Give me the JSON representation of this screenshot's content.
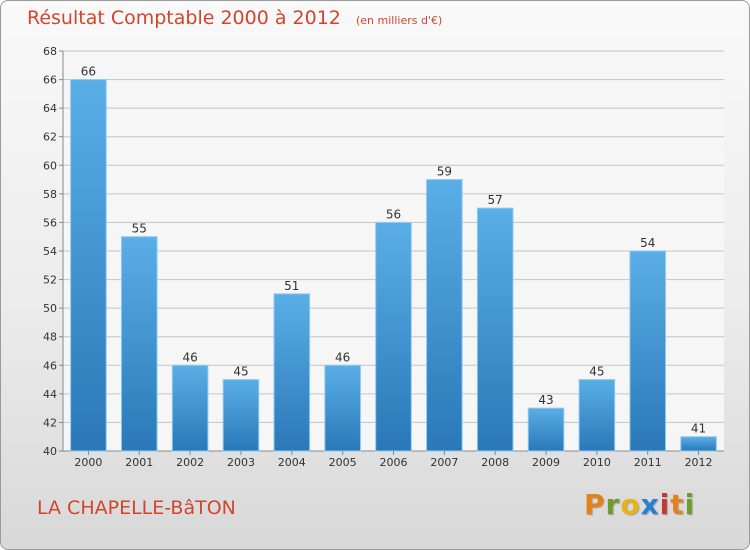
{
  "chart_data": {
    "type": "bar",
    "title": "Résultat Comptable 2000 à 2012",
    "subtitle": "(en milliers d'€)",
    "xlabel": "",
    "ylabel": "",
    "categories": [
      "2000",
      "2001",
      "2002",
      "2003",
      "2004",
      "2005",
      "2006",
      "2007",
      "2008",
      "2009",
      "2010",
      "2011",
      "2012"
    ],
    "values": [
      66,
      55,
      46,
      45,
      51,
      46,
      56,
      59,
      57,
      43,
      45,
      54,
      41
    ],
    "ylim": [
      40,
      68
    ],
    "yticks": [
      40,
      42,
      44,
      46,
      48,
      50,
      52,
      54,
      56,
      58,
      60,
      62,
      64,
      66,
      68
    ],
    "grid": true,
    "legend": "none",
    "colors": {
      "bar_top": "#5aaee6",
      "bar_bottom": "#2a78b8",
      "bar_edge": "#8fcbf2",
      "grid": "#c4c4c4",
      "plot_bg": "#f6f6f6",
      "title": "#d2452d"
    }
  },
  "footer": {
    "commune": "LA CHAPELLE-BâTON",
    "logo": {
      "letters": [
        "P",
        "r",
        "o",
        "x",
        "i",
        "t",
        "i"
      ],
      "colors": [
        "#e2821c",
        "#6f9c2a",
        "#e9b11a",
        "#2a7fd0",
        "#c23a36",
        "#e2821c",
        "#6f9c2a"
      ]
    }
  }
}
